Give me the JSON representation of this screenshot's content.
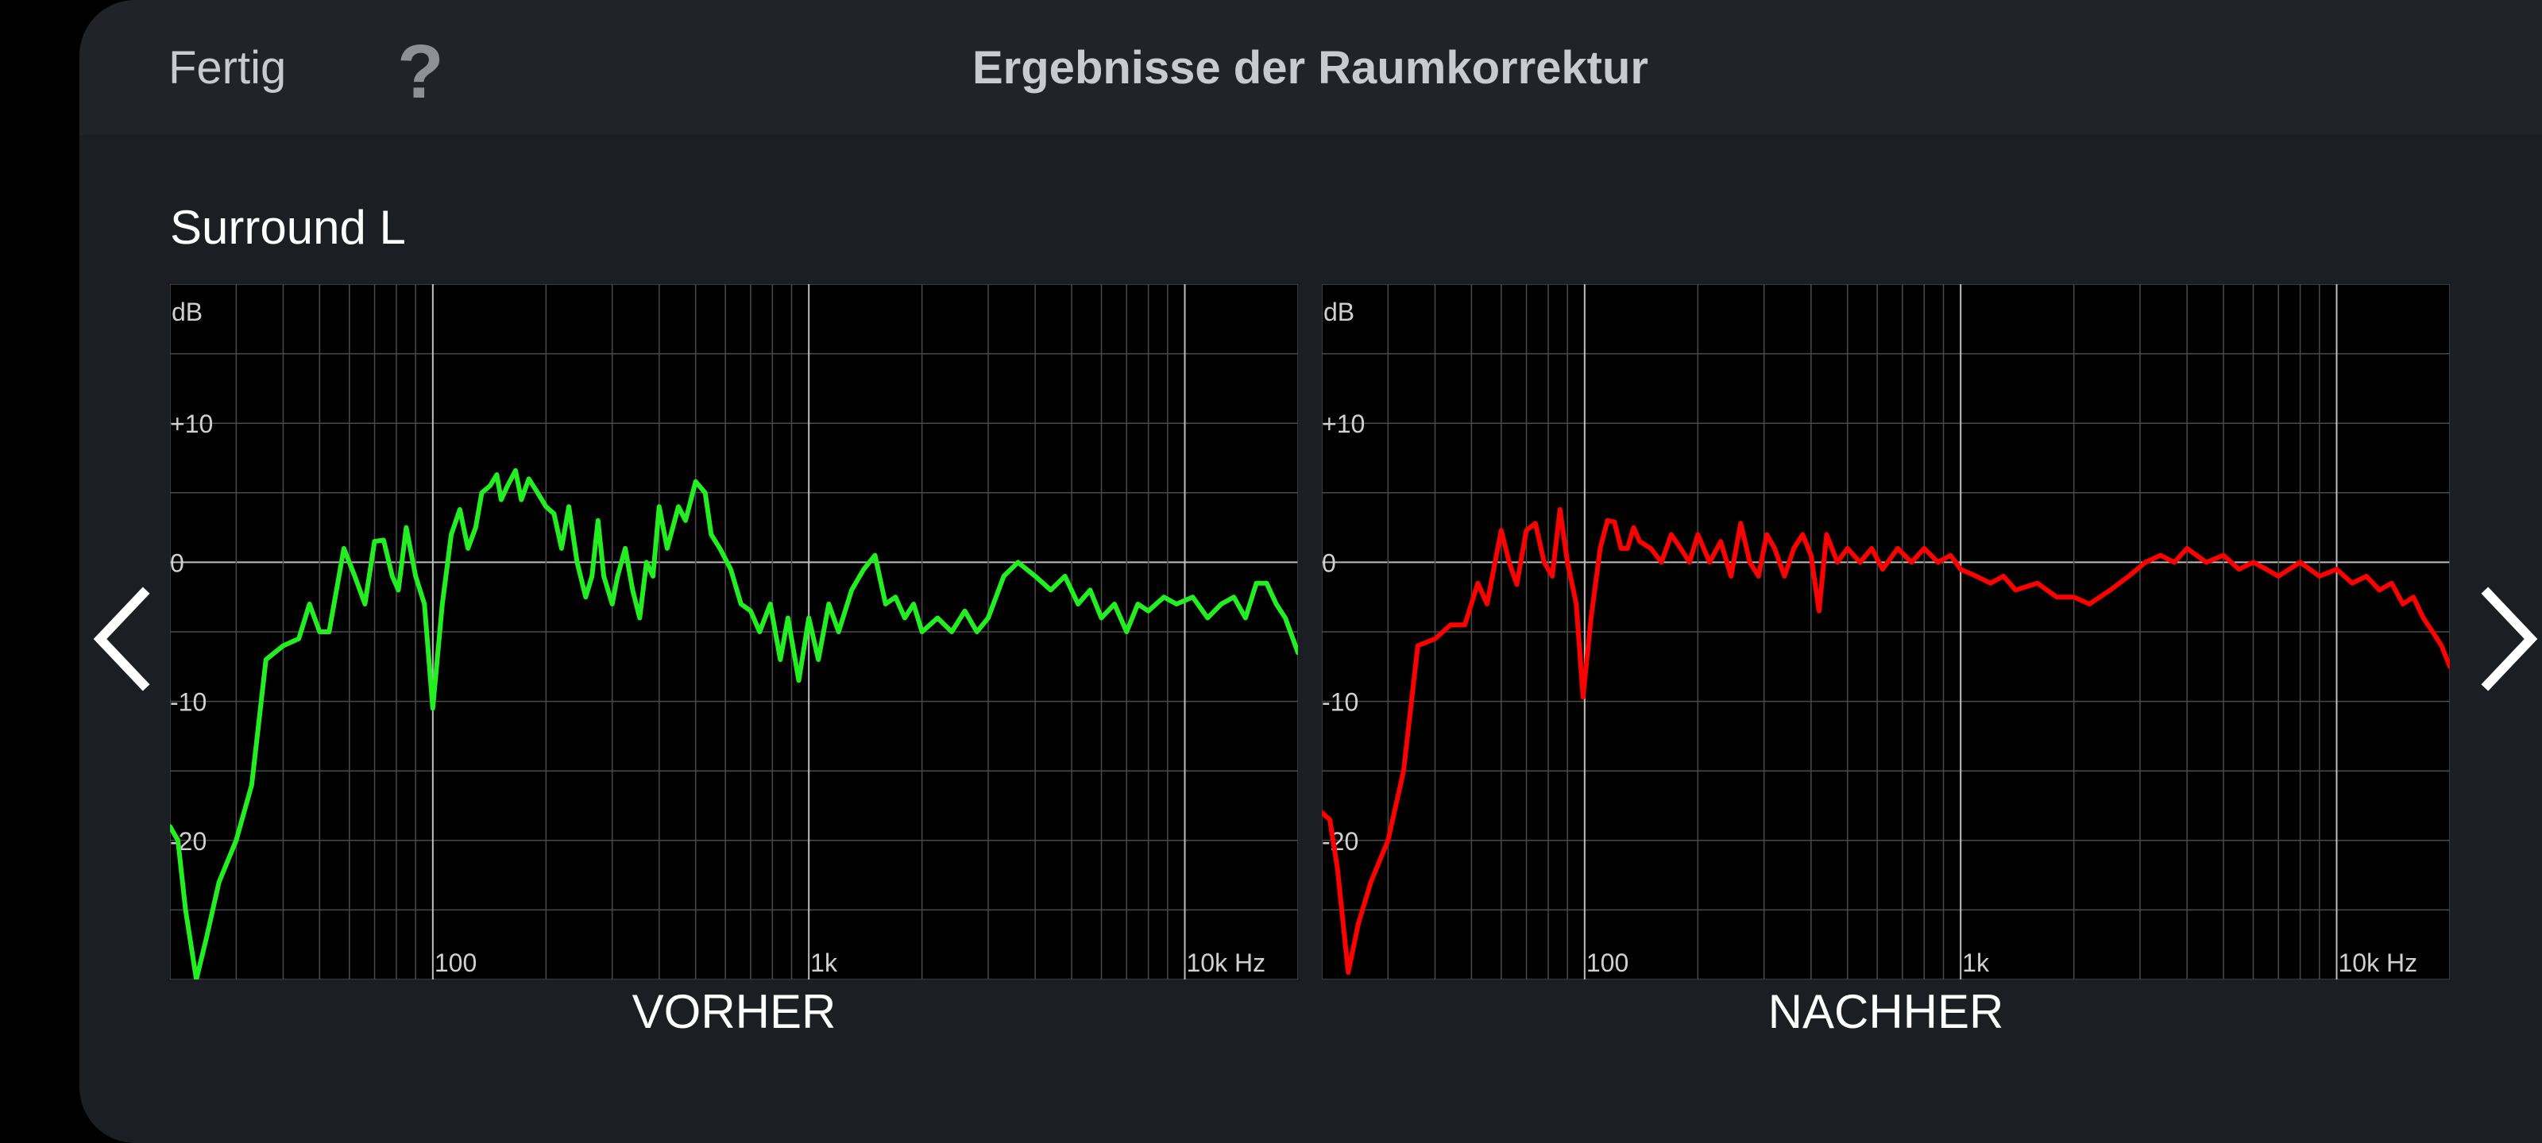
{
  "header": {
    "done_label": "Fertig",
    "help_label": "?",
    "title": "Ergebnisse der Raumkorrektur"
  },
  "channel_label": "Surround L",
  "navigation": {
    "prev_icon": "chevron-left-icon",
    "next_icon": "chevron-right-icon"
  },
  "colors": {
    "panel_bg": "#1b1e22",
    "before_curve": "#22ee22",
    "after_curve": "#ff0000"
  },
  "chart_data": [
    {
      "type": "line",
      "caption": "VORHER",
      "unit_label": "dB",
      "y_tick_labels": [
        "+10",
        "0",
        "-10",
        "-20"
      ],
      "x_tick_labels": [
        "100",
        "1k",
        "10k Hz"
      ],
      "x_scale": "log",
      "xlim": [
        20,
        20000
      ],
      "ylim": [
        -30,
        20
      ],
      "grid": true,
      "series": [
        {
          "color": "#22ee22",
          "points": [
            [
              20,
              -19
            ],
            [
              21,
              -20
            ],
            [
              22,
              -25
            ],
            [
              23.5,
              -30
            ],
            [
              25,
              -27
            ],
            [
              27,
              -23
            ],
            [
              30,
              -20
            ],
            [
              33,
              -16
            ],
            [
              36,
              -7
            ],
            [
              40,
              -6
            ],
            [
              44,
              -5.5
            ],
            [
              47,
              -3
            ],
            [
              50,
              -5
            ],
            [
              53,
              -5
            ],
            [
              58,
              1
            ],
            [
              62,
              -1
            ],
            [
              66,
              -3
            ],
            [
              70,
              1.5
            ],
            [
              74,
              1.6
            ],
            [
              78,
              -1
            ],
            [
              81,
              -2
            ],
            [
              85,
              2.5
            ],
            [
              90,
              -1
            ],
            [
              95,
              -3
            ],
            [
              100,
              -10.5
            ],
            [
              106,
              -3
            ],
            [
              112,
              2
            ],
            [
              118,
              3.8
            ],
            [
              124,
              1
            ],
            [
              130,
              2.5
            ],
            [
              135,
              5
            ],
            [
              142,
              5.5
            ],
            [
              148,
              6.3
            ],
            [
              152,
              4.5
            ],
            [
              158,
              5.5
            ],
            [
              166,
              6.6
            ],
            [
              172,
              4.5
            ],
            [
              180,
              6
            ],
            [
              190,
              5
            ],
            [
              200,
              4
            ],
            [
              210,
              3.5
            ],
            [
              220,
              1
            ],
            [
              230,
              4
            ],
            [
              242,
              0
            ],
            [
              255,
              -2.5
            ],
            [
              265,
              -1
            ],
            [
              275,
              3
            ],
            [
              285,
              -1
            ],
            [
              300,
              -3
            ],
            [
              310,
              -1
            ],
            [
              325,
              1
            ],
            [
              340,
              -2
            ],
            [
              355,
              -4
            ],
            [
              370,
              0
            ],
            [
              385,
              -1
            ],
            [
              400,
              4
            ],
            [
              420,
              1
            ],
            [
              450,
              4
            ],
            [
              470,
              3
            ],
            [
              500,
              5.8
            ],
            [
              530,
              5
            ],
            [
              550,
              2
            ],
            [
              580,
              1
            ],
            [
              620,
              -0.5
            ],
            [
              660,
              -3
            ],
            [
              700,
              -3.5
            ],
            [
              740,
              -5
            ],
            [
              790,
              -3
            ],
            [
              840,
              -7
            ],
            [
              880,
              -4
            ],
            [
              940,
              -8.5
            ],
            [
              1000,
              -4
            ],
            [
              1060,
              -7
            ],
            [
              1130,
              -3
            ],
            [
              1200,
              -5
            ],
            [
              1300,
              -2
            ],
            [
              1400,
              -0.5
            ],
            [
              1500,
              0.5
            ],
            [
              1600,
              -3
            ],
            [
              1700,
              -2.5
            ],
            [
              1800,
              -4
            ],
            [
              1900,
              -3
            ],
            [
              2000,
              -5
            ],
            [
              2200,
              -4
            ],
            [
              2400,
              -5
            ],
            [
              2600,
              -3.5
            ],
            [
              2800,
              -5
            ],
            [
              3000,
              -4
            ],
            [
              3300,
              -1
            ],
            [
              3600,
              0
            ],
            [
              4000,
              -1
            ],
            [
              4400,
              -2
            ],
            [
              4800,
              -1
            ],
            [
              5200,
              -3
            ],
            [
              5600,
              -2
            ],
            [
              6000,
              -4
            ],
            [
              6500,
              -3
            ],
            [
              7000,
              -5
            ],
            [
              7500,
              -3
            ],
            [
              8000,
              -3.5
            ],
            [
              8800,
              -2.5
            ],
            [
              9500,
              -3
            ],
            [
              10500,
              -2.5
            ],
            [
              11500,
              -4
            ],
            [
              12500,
              -3
            ],
            [
              13500,
              -2.5
            ],
            [
              14500,
              -4
            ],
            [
              15500,
              -1.5
            ],
            [
              16500,
              -1.5
            ],
            [
              17500,
              -3
            ],
            [
              18500,
              -4
            ],
            [
              20000,
              -6.5
            ]
          ]
        }
      ]
    },
    {
      "type": "line",
      "caption": "NACHHER",
      "unit_label": "dB",
      "y_tick_labels": [
        "+10",
        "0",
        "-10",
        "-20"
      ],
      "x_tick_labels": [
        "100",
        "1k",
        "10k Hz"
      ],
      "x_scale": "log",
      "xlim": [
        20,
        20000
      ],
      "ylim": [
        -30,
        20
      ],
      "grid": true,
      "series": [
        {
          "color": "#ff0000",
          "points": [
            [
              20,
              -18
            ],
            [
              21,
              -18.5
            ],
            [
              22,
              -22
            ],
            [
              23.5,
              -29.5
            ],
            [
              25,
              -26
            ],
            [
              27,
              -23
            ],
            [
              30,
              -20
            ],
            [
              33,
              -15
            ],
            [
              36,
              -6
            ],
            [
              40,
              -5.5
            ],
            [
              44,
              -4.5
            ],
            [
              48,
              -4.5
            ],
            [
              52,
              -1.5
            ],
            [
              55,
              -3
            ],
            [
              60,
              2.3
            ],
            [
              63,
              0
            ],
            [
              66,
              -1.6
            ],
            [
              70,
              2.3
            ],
            [
              74,
              2.8
            ],
            [
              78,
              0
            ],
            [
              82,
              -1
            ],
            [
              86,
              3.8
            ],
            [
              90,
              0
            ],
            [
              95,
              -3
            ],
            [
              99,
              -9.7
            ],
            [
              104,
              -4
            ],
            [
              110,
              1
            ],
            [
              115,
              3
            ],
            [
              120,
              2.9
            ],
            [
              125,
              1
            ],
            [
              130,
              1
            ],
            [
              135,
              2.5
            ],
            [
              140,
              1.5
            ],
            [
              150,
              1
            ],
            [
              160,
              0
            ],
            [
              170,
              2
            ],
            [
              180,
              1
            ],
            [
              190,
              0
            ],
            [
              200,
              2
            ],
            [
              215,
              0
            ],
            [
              230,
              1.5
            ],
            [
              245,
              -1
            ],
            [
              260,
              2.8
            ],
            [
              275,
              0
            ],
            [
              290,
              -1
            ],
            [
              305,
              2
            ],
            [
              320,
              1
            ],
            [
              340,
              -1
            ],
            [
              360,
              1
            ],
            [
              380,
              2
            ],
            [
              400,
              0.5
            ],
            [
              420,
              -3.5
            ],
            [
              440,
              2
            ],
            [
              470,
              0
            ],
            [
              500,
              1
            ],
            [
              540,
              0
            ],
            [
              580,
              1
            ],
            [
              620,
              -0.5
            ],
            [
              680,
              1
            ],
            [
              740,
              0
            ],
            [
              800,
              1
            ],
            [
              870,
              0
            ],
            [
              940,
              0.5
            ],
            [
              1000,
              -0.5
            ],
            [
              1100,
              -1
            ],
            [
              1200,
              -1.5
            ],
            [
              1300,
              -1
            ],
            [
              1400,
              -2
            ],
            [
              1600,
              -1.5
            ],
            [
              1800,
              -2.5
            ],
            [
              2000,
              -2.5
            ],
            [
              2200,
              -3
            ],
            [
              2500,
              -2
            ],
            [
              2800,
              -1
            ],
            [
              3100,
              0
            ],
            [
              3400,
              0.5
            ],
            [
              3700,
              0
            ],
            [
              4000,
              1
            ],
            [
              4500,
              0
            ],
            [
              5000,
              0.5
            ],
            [
              5500,
              -0.5
            ],
            [
              6000,
              0
            ],
            [
              6500,
              -0.5
            ],
            [
              7000,
              -1
            ],
            [
              8000,
              0
            ],
            [
              9000,
              -1
            ],
            [
              10000,
              -0.5
            ],
            [
              11000,
              -1.5
            ],
            [
              12000,
              -1
            ],
            [
              13000,
              -2
            ],
            [
              14000,
              -1.5
            ],
            [
              15000,
              -3
            ],
            [
              16000,
              -2.5
            ],
            [
              17000,
              -4
            ],
            [
              18000,
              -5
            ],
            [
              19000,
              -6
            ],
            [
              20000,
              -7.5
            ]
          ]
        }
      ]
    }
  ]
}
